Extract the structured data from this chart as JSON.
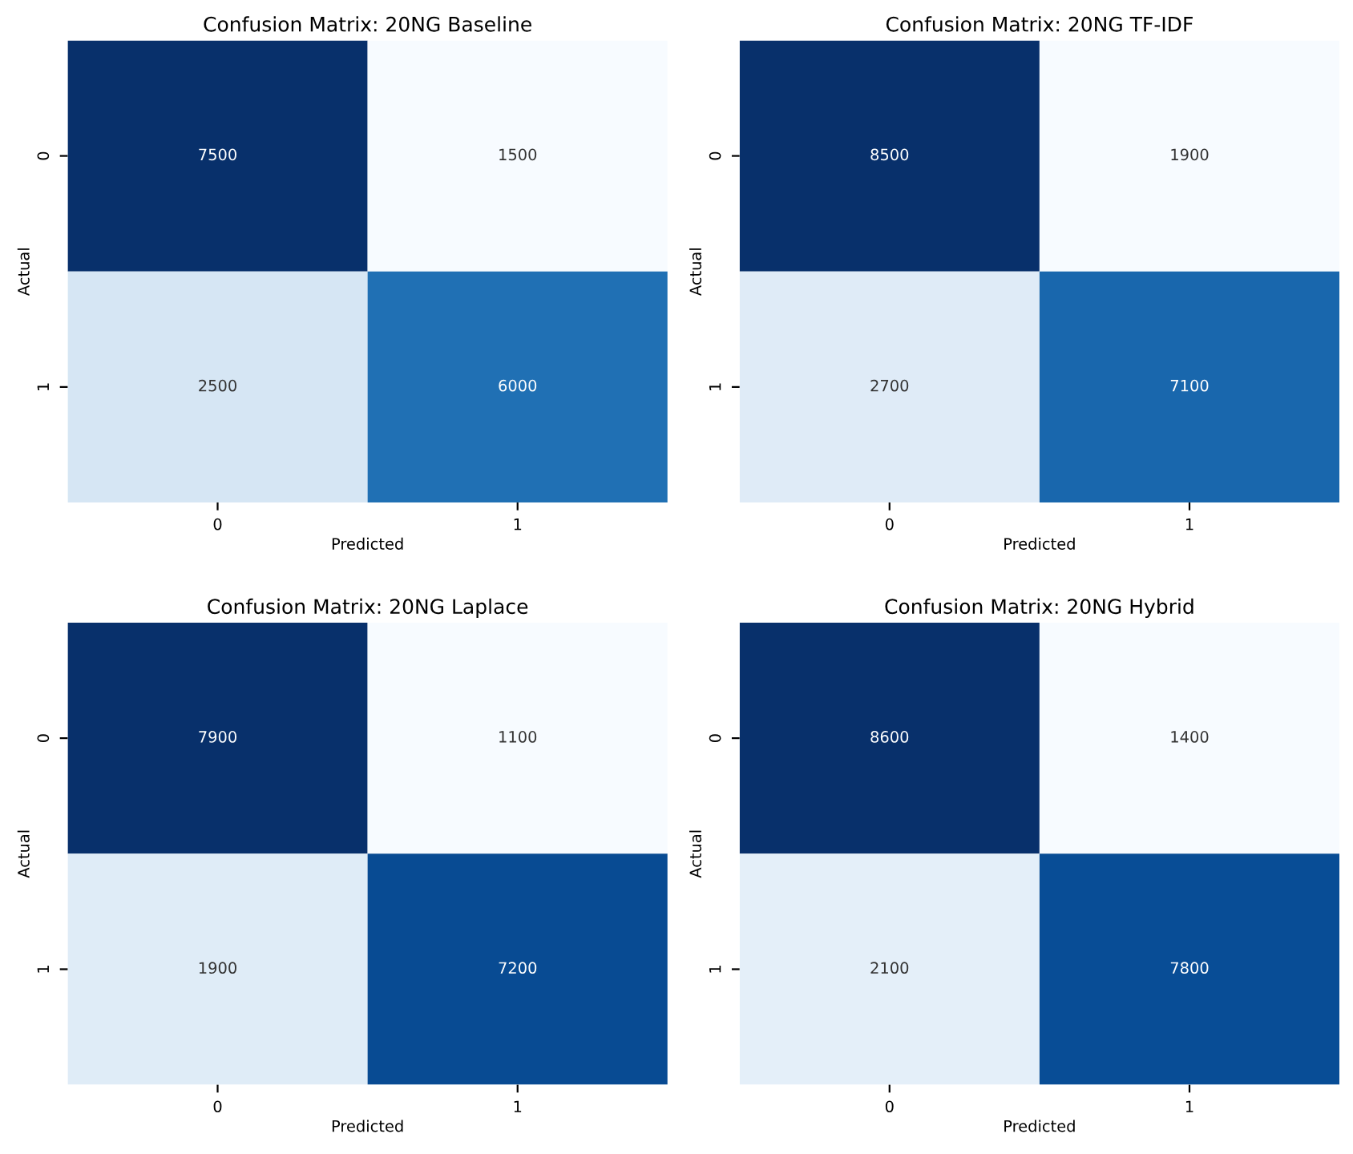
{
  "chart_data": [
    {
      "type": "heatmap",
      "title": "Confusion Matrix: 20NG Baseline",
      "xlabel": "Predicted",
      "ylabel": "Actual",
      "categories": [
        "0",
        "1"
      ],
      "y_categories": [
        "0",
        "1"
      ],
      "cells": [
        [
          7500,
          1500
        ],
        [
          2500,
          6000
        ]
      ],
      "data_labels": true
    },
    {
      "type": "heatmap",
      "title": "Confusion Matrix: 20NG TF-IDF",
      "xlabel": "Predicted",
      "ylabel": "Actual",
      "categories": [
        "0",
        "1"
      ],
      "y_categories": [
        "0",
        "1"
      ],
      "cells": [
        [
          8500,
          1900
        ],
        [
          2700,
          7100
        ]
      ],
      "data_labels": true
    },
    {
      "type": "heatmap",
      "title": "Confusion Matrix: 20NG Laplace",
      "xlabel": "Predicted",
      "ylabel": "Actual",
      "categories": [
        "0",
        "1"
      ],
      "y_categories": [
        "0",
        "1"
      ],
      "cells": [
        [
          7900,
          1100
        ],
        [
          1900,
          7200
        ]
      ],
      "data_labels": true
    },
    {
      "type": "heatmap",
      "title": "Confusion Matrix: 20NG Hybrid",
      "xlabel": "Predicted",
      "ylabel": "Actual",
      "categories": [
        "0",
        "1"
      ],
      "y_categories": [
        "0",
        "1"
      ],
      "cells": [
        [
          8600,
          1400
        ],
        [
          2100,
          7800
        ]
      ],
      "data_labels": true
    }
  ]
}
